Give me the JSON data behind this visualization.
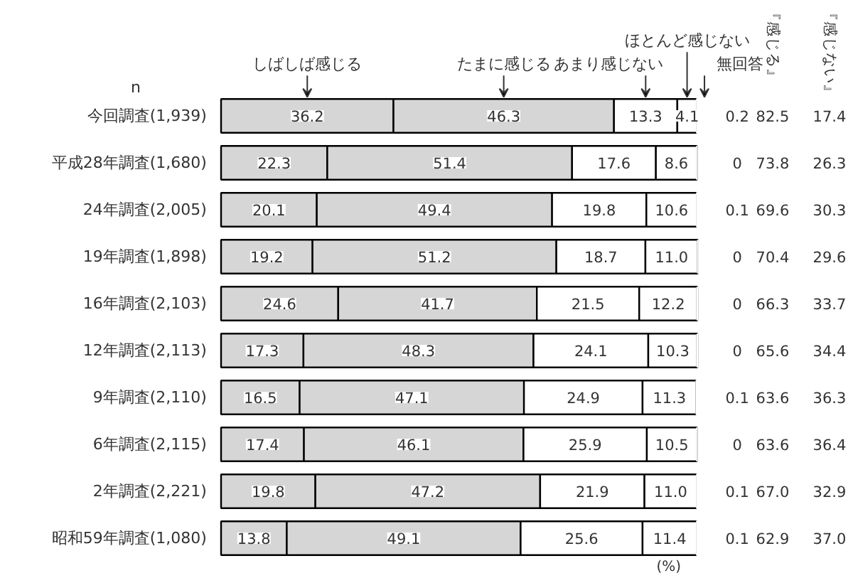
{
  "chart_data": {
    "type": "bar",
    "orientation": "horizontal",
    "stacked": true,
    "categories": [
      "今回調査(1,939)",
      "平成28年調査(1,680)",
      "24年調査(2,005)",
      "19年調査(1,898)",
      "16年調査(2,103)",
      "12年調査(2,113)",
      "9年調査(2,110)",
      "6年調査(2,115)",
      "2年調査(2,221)",
      "昭和59年調査(1,080)"
    ],
    "series": [
      {
        "name": "しばしば感じる",
        "color": "#d6d6d6",
        "values": [
          36.2,
          22.3,
          20.1,
          19.2,
          24.6,
          17.3,
          16.5,
          17.4,
          19.8,
          13.8
        ],
        "value_labels": [
          "36.2",
          "22.3",
          "20.1",
          "19.2",
          "24.6",
          "17.3",
          "16.5",
          "17.4",
          "19.8",
          "13.8"
        ]
      },
      {
        "name": "たまに感じる",
        "color": "#d6d6d6",
        "values": [
          46.3,
          51.4,
          49.4,
          51.2,
          41.7,
          48.3,
          47.1,
          46.1,
          47.2,
          49.1
        ],
        "value_labels": [
          "46.3",
          "51.4",
          "49.4",
          "51.2",
          "41.7",
          "48.3",
          "47.1",
          "46.1",
          "47.2",
          "49.1"
        ]
      },
      {
        "name": "あまり感じない",
        "color": "#ffffff",
        "values": [
          13.3,
          17.6,
          19.8,
          18.7,
          21.5,
          24.1,
          24.9,
          25.9,
          21.9,
          25.6
        ],
        "value_labels": [
          "13.3",
          "17.6",
          "19.8",
          "18.7",
          "21.5",
          "24.1",
          "24.9",
          "25.9",
          "21.9",
          "25.6"
        ]
      },
      {
        "name": "ほとんど感じない",
        "color": "#ffffff",
        "values": [
          4.1,
          8.6,
          10.6,
          11.0,
          12.2,
          10.3,
          11.3,
          10.5,
          11.0,
          11.4
        ],
        "value_labels": [
          "4.1",
          "8.6",
          "10.6",
          "11.0",
          "12.2",
          "10.3",
          "11.3",
          "10.5",
          "11.0",
          "11.4"
        ]
      },
      {
        "name": "無回答",
        "color": "#ffffff",
        "values": [
          0.2,
          0,
          0.1,
          0,
          0,
          0,
          0.1,
          0,
          0.1,
          0.1
        ],
        "value_labels": [
          "0.2",
          "0",
          "0.1",
          "0",
          "0",
          "0",
          "0.1",
          "0",
          "0.1",
          "0.1"
        ]
      }
    ],
    "xlim": [
      0,
      100
    ],
    "tick_labels": false,
    "grid": false,
    "annotations": [
      "n",
      "『感じる』",
      "『感じない』",
      "(%)",
      "82.5",
      "17.4",
      "73.8",
      "26.3",
      "69.6",
      "30.3",
      "70.4",
      "29.6",
      "66.3",
      "33.7",
      "65.6",
      "34.4",
      "63.6",
      "36.3",
      "63.6",
      "36.4",
      "67.0",
      "32.9",
      "62.9",
      "37.0"
    ]
  }
}
